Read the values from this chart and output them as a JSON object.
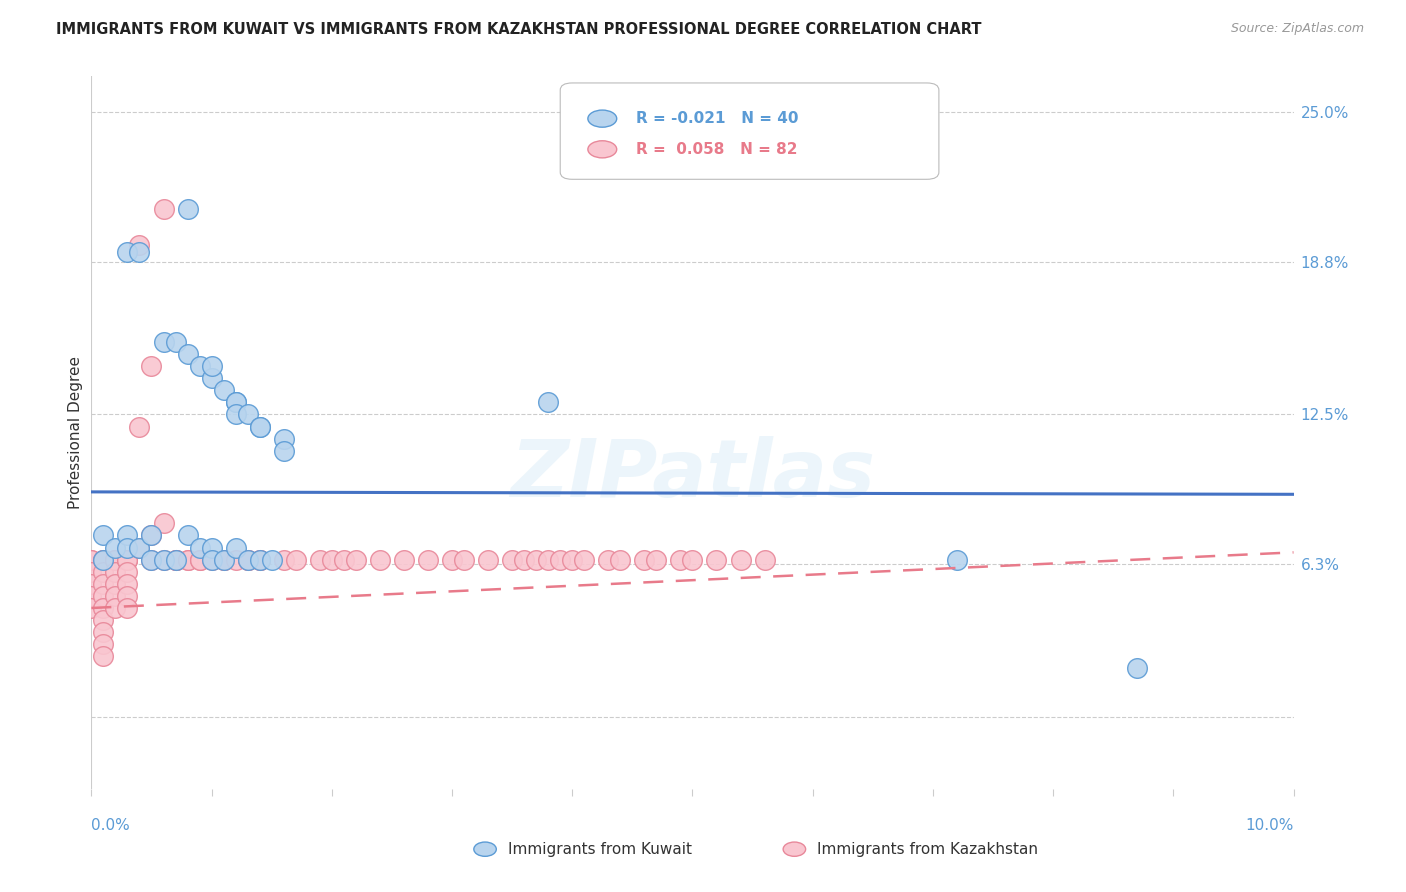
{
  "title": "IMMIGRANTS FROM KUWAIT VS IMMIGRANTS FROM KAZAKHSTAN PROFESSIONAL DEGREE CORRELATION CHART",
  "source": "Source: ZipAtlas.com",
  "ylabel": "Professional Degree",
  "xmin": 0.0,
  "xmax": 0.1,
  "ymin": -0.03,
  "ymax": 0.265,
  "right_yticks": [
    0.0,
    0.063,
    0.125,
    0.188,
    0.25
  ],
  "right_yticklabels": [
    "",
    "6.3%",
    "12.5%",
    "18.8%",
    "25.0%"
  ],
  "color_kuwait_face": "#b8d4ee",
  "color_kuwait_edge": "#5b9bd5",
  "color_kazakhstan_face": "#f9c6d0",
  "color_kazakhstan_edge": "#e8889a",
  "color_kuwait_line": "#4472c4",
  "color_kazakhstan_line": "#e87a8a",
  "watermark": "ZIPatlas",
  "kuwait_x": [
    0.008,
    0.003,
    0.004,
    0.006,
    0.007,
    0.008,
    0.009,
    0.01,
    0.01,
    0.011,
    0.012,
    0.012,
    0.012,
    0.013,
    0.014,
    0.014,
    0.016,
    0.016,
    0.038,
    0.001,
    0.001,
    0.002,
    0.003,
    0.003,
    0.004,
    0.005,
    0.005,
    0.006,
    0.007,
    0.008,
    0.009,
    0.01,
    0.01,
    0.011,
    0.012,
    0.013,
    0.014,
    0.015,
    0.072,
    0.087
  ],
  "kuwait_y": [
    0.21,
    0.192,
    0.192,
    0.155,
    0.155,
    0.15,
    0.145,
    0.14,
    0.145,
    0.135,
    0.13,
    0.13,
    0.125,
    0.125,
    0.12,
    0.12,
    0.115,
    0.11,
    0.13,
    0.075,
    0.065,
    0.07,
    0.075,
    0.07,
    0.07,
    0.075,
    0.065,
    0.065,
    0.065,
    0.075,
    0.07,
    0.07,
    0.065,
    0.065,
    0.07,
    0.065,
    0.065,
    0.065,
    0.065,
    0.02
  ],
  "kazakhstan_x": [
    0.0,
    0.0,
    0.0,
    0.0,
    0.0,
    0.0,
    0.001,
    0.001,
    0.001,
    0.001,
    0.001,
    0.001,
    0.001,
    0.001,
    0.001,
    0.001,
    0.002,
    0.002,
    0.002,
    0.002,
    0.002,
    0.002,
    0.002,
    0.003,
    0.003,
    0.003,
    0.003,
    0.003,
    0.003,
    0.003,
    0.004,
    0.004,
    0.004,
    0.005,
    0.005,
    0.005,
    0.006,
    0.006,
    0.006,
    0.007,
    0.007,
    0.007,
    0.008,
    0.008,
    0.009,
    0.009,
    0.01,
    0.011,
    0.011,
    0.012,
    0.013,
    0.013,
    0.014,
    0.014,
    0.016,
    0.017,
    0.019,
    0.02,
    0.021,
    0.022,
    0.024,
    0.026,
    0.028,
    0.03,
    0.031,
    0.033,
    0.035,
    0.036,
    0.037,
    0.038,
    0.039,
    0.04,
    0.041,
    0.043,
    0.044,
    0.046,
    0.047,
    0.049,
    0.05,
    0.052,
    0.054,
    0.056
  ],
  "kazakhstan_y": [
    0.065,
    0.065,
    0.06,
    0.055,
    0.05,
    0.045,
    0.065,
    0.065,
    0.06,
    0.055,
    0.05,
    0.045,
    0.04,
    0.035,
    0.03,
    0.025,
    0.065,
    0.065,
    0.065,
    0.06,
    0.055,
    0.05,
    0.045,
    0.065,
    0.065,
    0.065,
    0.06,
    0.055,
    0.05,
    0.045,
    0.195,
    0.12,
    0.07,
    0.145,
    0.075,
    0.065,
    0.21,
    0.08,
    0.065,
    0.065,
    0.065,
    0.065,
    0.065,
    0.065,
    0.065,
    0.065,
    0.065,
    0.065,
    0.065,
    0.065,
    0.065,
    0.065,
    0.065,
    0.065,
    0.065,
    0.065,
    0.065,
    0.065,
    0.065,
    0.065,
    0.065,
    0.065,
    0.065,
    0.065,
    0.065,
    0.065,
    0.065,
    0.065,
    0.065,
    0.065,
    0.065,
    0.065,
    0.065,
    0.065,
    0.065,
    0.065,
    0.065,
    0.065,
    0.065,
    0.065,
    0.065,
    0.065
  ],
  "kuw_line_y0": 0.093,
  "kuw_line_y1": 0.092,
  "kaz_line_y0": 0.045,
  "kaz_line_y1": 0.068
}
